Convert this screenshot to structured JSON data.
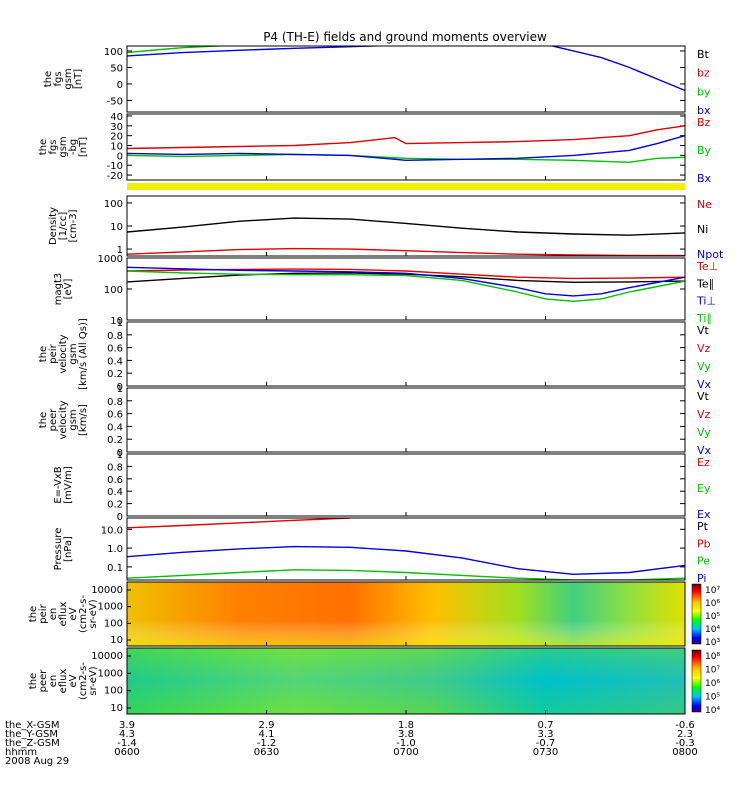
{
  "title": "P4 (TH-E) fields and ground moments overview",
  "chart_data": [
    {
      "type": "line",
      "ylabel": [
        "the",
        "fgs",
        "gsm",
        "[nT]"
      ],
      "yticks": [
        100,
        50,
        0,
        -50
      ],
      "ylim": [
        -85,
        115
      ],
      "legend": [
        {
          "name": "Bt",
          "color": "#000000"
        },
        {
          "name": "bz",
          "color": "#e00000"
        },
        {
          "name": "by",
          "color": "#00c000"
        },
        {
          "name": "bx",
          "color": "#0000e0"
        }
      ],
      "series": [
        {
          "name": "bx",
          "color": "#0000e0",
          "x": [
            0,
            0.1,
            0.2,
            0.3,
            0.4,
            0.5,
            0.6,
            0.7,
            0.75,
            0.8,
            0.85,
            0.9,
            0.95,
            1.0
          ],
          "y": [
            85,
            95,
            102,
            108,
            113,
            118,
            122,
            125,
            120,
            100,
            80,
            50,
            15,
            -20
          ]
        },
        {
          "name": "by",
          "color": "#00c000",
          "x": [
            0,
            0.05,
            0.1,
            0.15,
            0.2
          ],
          "y": [
            95,
            103,
            110,
            114,
            118
          ]
        }
      ]
    },
    {
      "type": "line",
      "ylabel": [
        "the",
        "fgs",
        "gsm",
        "-bg",
        "[nT]"
      ],
      "yticks": [
        40,
        30,
        20,
        10,
        0,
        -10,
        -20
      ],
      "ylim": [
        -25,
        42
      ],
      "legend": [
        {
          "name": "Bz",
          "color": "#e00000"
        },
        {
          "name": "By",
          "color": "#00c000"
        },
        {
          "name": "Bx",
          "color": "#0000e0"
        }
      ],
      "series": [
        {
          "name": "Bz",
          "color": "#e00000",
          "x": [
            0,
            0.1,
            0.2,
            0.3,
            0.4,
            0.48,
            0.5,
            0.6,
            0.7,
            0.8,
            0.9,
            0.95,
            1.0
          ],
          "y": [
            7,
            8,
            9,
            10,
            13,
            18,
            12,
            13,
            14,
            16,
            20,
            26,
            30
          ]
        },
        {
          "name": "By",
          "color": "#00c000",
          "x": [
            0,
            0.1,
            0.2,
            0.3,
            0.4,
            0.5,
            0.6,
            0.7,
            0.8,
            0.9,
            0.95,
            1.0
          ],
          "y": [
            0,
            -1,
            0,
            1,
            0,
            -3,
            -4,
            -4,
            -5,
            -7,
            -3,
            -2
          ]
        },
        {
          "name": "Bx",
          "color": "#0000e0",
          "x": [
            0,
            0.1,
            0.2,
            0.3,
            0.4,
            0.5,
            0.6,
            0.7,
            0.8,
            0.9,
            0.95,
            1.0
          ],
          "y": [
            2,
            1,
            2,
            1,
            0,
            -5,
            -4,
            -3,
            0,
            5,
            12,
            20
          ]
        }
      ]
    },
    {
      "type": "line",
      "scale": "log",
      "ylabel": [
        "Density",
        "[1/cc]",
        "[cm-3]"
      ],
      "yticks": [
        {
          "v": 100,
          "t": "100"
        },
        {
          "v": 10,
          "t": "10"
        },
        {
          "v": 1,
          "t": "1"
        }
      ],
      "ylim": [
        0.5,
        200
      ],
      "legend": [
        {
          "name": "Ne",
          "color": "#e00000"
        },
        {
          "name": "Ni",
          "color": "#000000"
        },
        {
          "name": "Npot",
          "color": "#0000e0"
        }
      ],
      "series": [
        {
          "name": "Ni",
          "color": "#000000",
          "x": [
            0,
            0.1,
            0.2,
            0.3,
            0.4,
            0.5,
            0.6,
            0.7,
            0.8,
            0.9,
            1.0
          ],
          "y": [
            5.5,
            9,
            16,
            22,
            20,
            13,
            8,
            5.5,
            4.5,
            4,
            5
          ]
        },
        {
          "name": "Ne",
          "color": "#e00000",
          "x": [
            0,
            0.1,
            0.2,
            0.3,
            0.4,
            0.5,
            0.6,
            0.7,
            0.8,
            0.9,
            1.0
          ],
          "y": [
            0.6,
            0.75,
            0.95,
            1.05,
            1.0,
            0.85,
            0.7,
            0.6,
            0.55,
            0.53,
            0.52
          ]
        }
      ]
    },
    {
      "type": "line",
      "scale": "log",
      "ylabel": [
        "magt3",
        "[eV]"
      ],
      "yticks": [
        {
          "v": 1000,
          "t": "1000"
        },
        {
          "v": 100,
          "t": "100"
        },
        {
          "v": 10,
          "t": "10"
        }
      ],
      "ylim": [
        10,
        1000
      ],
      "legend": [
        {
          "name": "Te⊥",
          "color": "#e00000"
        },
        {
          "name": "Te∥",
          "color": "#000000"
        },
        {
          "name": "Ti⊥",
          "color": "#0000e0"
        },
        {
          "name": "Ti∥",
          "color": "#00c000"
        }
      ],
      "series": [
        {
          "name": "Te⊥",
          "color": "#e00000",
          "x": [
            0,
            0.1,
            0.2,
            0.3,
            0.4,
            0.5,
            0.6,
            0.7,
            0.8,
            0.9,
            1.0
          ],
          "y": [
            380,
            410,
            430,
            440,
            430,
            380,
            300,
            240,
            220,
            225,
            240
          ]
        },
        {
          "name": "Te∥",
          "color": "#000000",
          "x": [
            0,
            0.1,
            0.2,
            0.3,
            0.4,
            0.5,
            0.6,
            0.7,
            0.8,
            0.9,
            1.0
          ],
          "y": [
            170,
            220,
            280,
            320,
            330,
            300,
            250,
            190,
            165,
            170,
            180
          ]
        },
        {
          "name": "Ti⊥",
          "color": "#0000e0",
          "x": [
            0,
            0.1,
            0.2,
            0.3,
            0.4,
            0.5,
            0.6,
            0.7,
            0.75,
            0.8,
            0.85,
            0.9,
            1.0
          ],
          "y": [
            500,
            450,
            400,
            380,
            360,
            320,
            220,
            110,
            70,
            60,
            70,
            110,
            240
          ]
        },
        {
          "name": "Ti∥",
          "color": "#00c000",
          "x": [
            0,
            0.1,
            0.2,
            0.3,
            0.4,
            0.5,
            0.6,
            0.7,
            0.75,
            0.8,
            0.85,
            0.9,
            1.0
          ],
          "y": [
            380,
            330,
            300,
            290,
            290,
            270,
            190,
            80,
            48,
            40,
            48,
            80,
            180
          ]
        }
      ]
    },
    {
      "type": "line",
      "ylabel": [
        "the",
        "peir",
        "velocity",
        "gsm",
        "[km/s (All Qs)]"
      ],
      "yticks": [
        1.0,
        0.8,
        0.6,
        0.4,
        0.2,
        0.0
      ],
      "ylim": [
        0,
        1
      ],
      "legend": [
        {
          "name": "Vt",
          "color": "#000000"
        },
        {
          "name": "Vz",
          "color": "#e00000"
        },
        {
          "name": "Vy",
          "color": "#00c000"
        },
        {
          "name": "Vx",
          "color": "#0000e0"
        }
      ],
      "series": []
    },
    {
      "type": "line",
      "ylabel": [
        "the",
        "peer",
        "velocity",
        "gsm",
        "[km/s]"
      ],
      "yticks": [
        1.0,
        0.8,
        0.6,
        0.4,
        0.2,
        0.0
      ],
      "ylim": [
        0,
        1
      ],
      "legend": [
        {
          "name": "Vt",
          "color": "#000000"
        },
        {
          "name": "Vz",
          "color": "#e00000"
        },
        {
          "name": "Vy",
          "color": "#00c000"
        },
        {
          "name": "Vx",
          "color": "#0000e0"
        }
      ],
      "series": []
    },
    {
      "type": "line",
      "ylabel": [
        "E=-VxB",
        "[mV/m]"
      ],
      "yticks": [
        1.0,
        0.8,
        0.6,
        0.4,
        0.2,
        0.0
      ],
      "ylim": [
        0,
        1
      ],
      "legend": [
        {
          "name": "Ez",
          "color": "#e00000"
        },
        {
          "name": "Ey",
          "color": "#00c000"
        },
        {
          "name": "Ex",
          "color": "#0000e0"
        }
      ],
      "series": []
    },
    {
      "type": "line",
      "scale": "log",
      "ylabel": [
        "Pressure",
        "[nPa]"
      ],
      "yticks": [
        {
          "v": 10,
          "t": "10.0"
        },
        {
          "v": 1,
          "t": "1.0"
        },
        {
          "v": 0.1,
          "t": "0.1"
        }
      ],
      "ylim": [
        0.02,
        40
      ],
      "legend": [
        {
          "name": "Pt",
          "color": "#000000"
        },
        {
          "name": "Pb",
          "color": "#e00000"
        },
        {
          "name": "Pe",
          "color": "#00c000"
        },
        {
          "name": "Pi",
          "color": "#0000e0"
        }
      ],
      "series": [
        {
          "name": "Pb",
          "color": "#e00000",
          "x": [
            0,
            0.1,
            0.2,
            0.3,
            0.4
          ],
          "y": [
            12,
            16,
            22,
            30,
            40
          ]
        },
        {
          "name": "Pi",
          "color": "#0000e0",
          "x": [
            0,
            0.1,
            0.2,
            0.3,
            0.4,
            0.5,
            0.6,
            0.7,
            0.8,
            0.9,
            1.0
          ],
          "y": [
            0.35,
            0.6,
            0.9,
            1.2,
            1.1,
            0.7,
            0.3,
            0.08,
            0.04,
            0.05,
            0.12
          ]
        },
        {
          "name": "Pe",
          "color": "#00c000",
          "x": [
            0,
            0.1,
            0.2,
            0.3,
            0.4,
            0.5,
            0.6,
            0.7,
            0.8,
            0.9,
            1.0
          ],
          "y": [
            0.025,
            0.035,
            0.05,
            0.07,
            0.065,
            0.05,
            0.035,
            0.025,
            0.02,
            0.02,
            0.025
          ]
        }
      ]
    },
    {
      "type": "heatmap",
      "ylabel": [
        "the",
        "peir",
        "en",
        "eflux",
        "eV",
        "(cm2-s-",
        "sr-eV)"
      ],
      "yticks": [
        "10000",
        "1000",
        "100",
        "10"
      ],
      "colorbar": [
        "10⁷",
        "10⁶",
        "10⁵",
        "10⁴",
        "10³"
      ]
    },
    {
      "type": "heatmap",
      "ylabel": [
        "the",
        "peer",
        "en",
        "eflux",
        "eV",
        "(cm2-s-",
        "sr-eV)"
      ],
      "yticks": [
        "10000",
        "1000",
        "100",
        "10"
      ],
      "colorbar": [
        "10⁸",
        "10⁷",
        "10⁶",
        "10⁵",
        "10⁴"
      ]
    }
  ],
  "xaxis": {
    "rows": [
      {
        "label": "the_X-GSM",
        "values": [
          "3.9",
          "2.9",
          "1.8",
          "0.7",
          "-0.6"
        ]
      },
      {
        "label": "the_Y-GSM",
        "values": [
          "4.3",
          "4.1",
          "3.8",
          "3.3",
          "2.3"
        ]
      },
      {
        "label": "the_Z-GSM",
        "values": [
          "-1.4",
          "-1.2",
          "-1.0",
          "-0.7",
          "-0.3"
        ]
      },
      {
        "label": "hhmm",
        "values": [
          "0600",
          "0630",
          "0700",
          "0730",
          "0800"
        ]
      }
    ],
    "date": "2008 Aug 29"
  }
}
